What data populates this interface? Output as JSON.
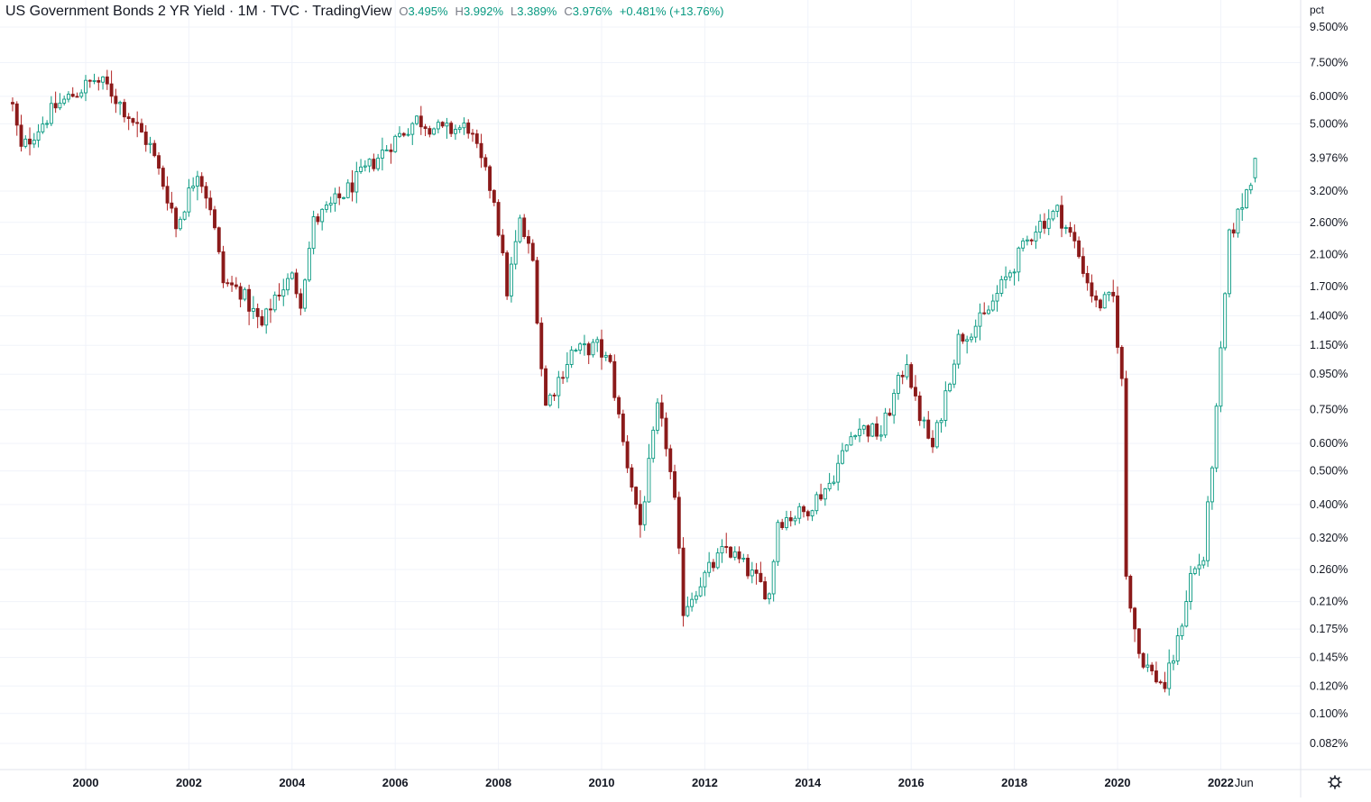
{
  "legend": {
    "symbol_title": "US Government Bonds 2 YR Yield",
    "interval": "1M",
    "exchange": "TVC",
    "source": "TradingView",
    "ohlc": {
      "o_label": "O",
      "o_value": "3.495%",
      "h_label": "H",
      "h_value": "3.992%",
      "l_label": "L",
      "l_value": "3.389%",
      "c_label": "C",
      "c_value": "3.976%",
      "change": "+0.481% (+13.76%)"
    }
  },
  "price_scale": {
    "unit": "pct",
    "labels": [
      "9.500%",
      "7.500%",
      "6.000%",
      "5.000%",
      "3.976%",
      "3.200%",
      "2.600%",
      "2.100%",
      "1.700%",
      "1.400%",
      "1.150%",
      "0.950%",
      "0.750%",
      "0.600%",
      "0.500%",
      "0.400%",
      "0.320%",
      "0.260%",
      "0.210%",
      "0.175%",
      "0.145%",
      "0.120%",
      "0.100%",
      "0.082%"
    ],
    "current_value_label": "3.976%"
  },
  "time_scale": {
    "labels": [
      "2000",
      "2002",
      "2004",
      "2006",
      "2008",
      "2010",
      "2012",
      "2014",
      "2016",
      "2018",
      "2020",
      "2022",
      "Jun"
    ]
  },
  "colors": {
    "up": "#089981",
    "down": "#8b1a1a",
    "wick_down": "#b22222",
    "grid": "#f0f3fa"
  },
  "chart_data": {
    "type": "candlestick",
    "interval": "1M",
    "scale": "log",
    "y_unit": "pct",
    "y_range": [
      0.075,
      10.0
    ],
    "x_range": [
      "1998-08",
      "2023-06"
    ],
    "points": [
      {
        "d": "1998-08",
        "v": 5.6
      },
      {
        "d": "1998-10",
        "v": 4.2
      },
      {
        "d": "1999-01",
        "v": 4.7
      },
      {
        "d": "1999-06",
        "v": 5.6
      },
      {
        "d": "1999-12",
        "v": 6.3
      },
      {
        "d": "2000-03",
        "v": 6.7
      },
      {
        "d": "2000-06",
        "v": 6.4
      },
      {
        "d": "2000-12",
        "v": 5.1
      },
      {
        "d": "2001-04",
        "v": 4.3
      },
      {
        "d": "2001-09",
        "v": 2.85
      },
      {
        "d": "2001-10",
        "v": 2.5
      },
      {
        "d": "2002-03",
        "v": 3.7
      },
      {
        "d": "2002-06",
        "v": 2.9
      },
      {
        "d": "2002-09",
        "v": 1.75
      },
      {
        "d": "2003-01",
        "v": 1.65
      },
      {
        "d": "2003-06",
        "v": 1.3
      },
      {
        "d": "2003-09",
        "v": 1.6
      },
      {
        "d": "2004-01",
        "v": 1.8
      },
      {
        "d": "2004-03",
        "v": 1.55
      },
      {
        "d": "2004-06",
        "v": 2.6
      },
      {
        "d": "2004-12",
        "v": 3.05
      },
      {
        "d": "2005-06",
        "v": 3.65
      },
      {
        "d": "2005-12",
        "v": 4.4
      },
      {
        "d": "2006-06",
        "v": 5.15
      },
      {
        "d": "2006-12",
        "v": 4.75
      },
      {
        "d": "2007-06",
        "v": 4.9
      },
      {
        "d": "2007-08",
        "v": 4.15
      },
      {
        "d": "2007-12",
        "v": 3.05
      },
      {
        "d": "2008-03",
        "v": 1.65
      },
      {
        "d": "2008-06",
        "v": 2.6
      },
      {
        "d": "2008-09",
        "v": 2.0
      },
      {
        "d": "2008-11",
        "v": 1.0
      },
      {
        "d": "2008-12",
        "v": 0.77
      },
      {
        "d": "2009-06",
        "v": 1.1
      },
      {
        "d": "2009-12",
        "v": 1.14
      },
      {
        "d": "2010-03",
        "v": 1.0
      },
      {
        "d": "2010-06",
        "v": 0.6
      },
      {
        "d": "2010-10",
        "v": 0.35
      },
      {
        "d": "2011-02",
        "v": 0.75
      },
      {
        "d": "2011-04",
        "v": 0.6
      },
      {
        "d": "2011-06",
        "v": 0.4
      },
      {
        "d": "2011-08",
        "v": 0.2
      },
      {
        "d": "2011-12",
        "v": 0.24
      },
      {
        "d": "2012-06",
        "v": 0.3
      },
      {
        "d": "2012-12",
        "v": 0.25
      },
      {
        "d": "2013-04",
        "v": 0.22
      },
      {
        "d": "2013-06",
        "v": 0.36
      },
      {
        "d": "2013-12",
        "v": 0.38
      },
      {
        "d": "2014-06",
        "v": 0.46
      },
      {
        "d": "2014-12",
        "v": 0.67
      },
      {
        "d": "2015-06",
        "v": 0.64
      },
      {
        "d": "2015-12",
        "v": 1.05
      },
      {
        "d": "2016-02",
        "v": 0.78
      },
      {
        "d": "2016-06",
        "v": 0.58
      },
      {
        "d": "2016-12",
        "v": 1.2
      },
      {
        "d": "2017-06",
        "v": 1.38
      },
      {
        "d": "2017-12",
        "v": 1.88
      },
      {
        "d": "2018-06",
        "v": 2.53
      },
      {
        "d": "2018-11",
        "v": 2.8
      },
      {
        "d": "2019-03",
        "v": 2.26
      },
      {
        "d": "2019-08",
        "v": 1.5
      },
      {
        "d": "2019-12",
        "v": 1.57
      },
      {
        "d": "2020-02",
        "v": 0.9
      },
      {
        "d": "2020-03",
        "v": 0.25
      },
      {
        "d": "2020-06",
        "v": 0.15
      },
      {
        "d": "2020-09",
        "v": 0.13
      },
      {
        "d": "2020-12",
        "v": 0.12
      },
      {
        "d": "2021-03",
        "v": 0.16
      },
      {
        "d": "2021-06",
        "v": 0.25
      },
      {
        "d": "2021-09",
        "v": 0.28
      },
      {
        "d": "2021-12",
        "v": 0.73
      },
      {
        "d": "2022-03",
        "v": 2.34
      },
      {
        "d": "2022-06",
        "v": 2.95
      },
      {
        "d": "2022-08",
        "v": 3.495
      },
      {
        "d": "2022-09",
        "v": 3.976
      }
    ],
    "last": {
      "d": "2022-09",
      "open": 3.495,
      "high": 3.992,
      "low": 3.389,
      "close": 3.976
    }
  }
}
